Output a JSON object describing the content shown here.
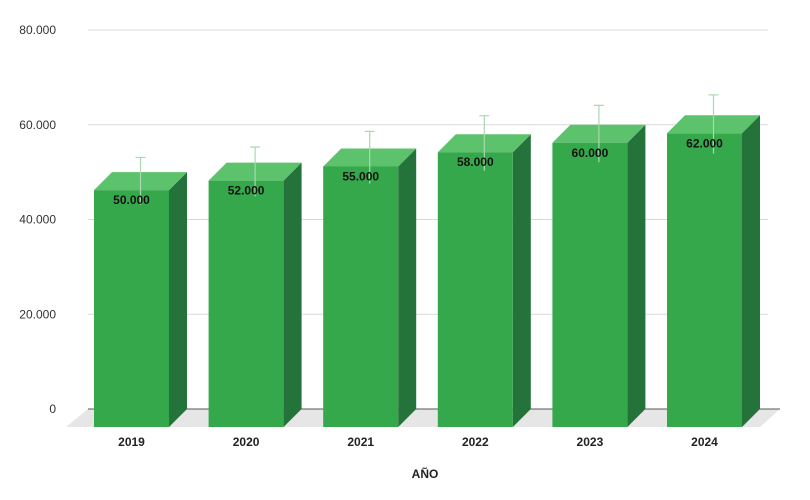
{
  "chart_data": {
    "type": "bar",
    "style": "3d",
    "categories": [
      "2019",
      "2020",
      "2021",
      "2022",
      "2023",
      "2024"
    ],
    "values": [
      50000,
      52000,
      55000,
      58000,
      60000,
      62000
    ],
    "value_labels": [
      "50.000",
      "52.000",
      "55.000",
      "58.000",
      "60.000",
      "62.000"
    ],
    "error_bars": [
      5000,
      5200,
      5500,
      5800,
      6000,
      6200
    ],
    "ylim": [
      0,
      80000
    ],
    "yticks": [
      0,
      20000,
      40000,
      60000,
      80000
    ],
    "ytick_labels": [
      "0",
      "20.000",
      "40.000",
      "60.000",
      "80.000"
    ],
    "xlabel": "AÑO",
    "ylabel": "",
    "title": "",
    "grid": true,
    "colors": {
      "bar_front": "#36a84c",
      "bar_top": "#5cc26c",
      "bar_side": "#24733a",
      "floor": "#e6e6e6",
      "grid": "#d9d9d9",
      "error_bar": "#a9d8b0"
    }
  }
}
